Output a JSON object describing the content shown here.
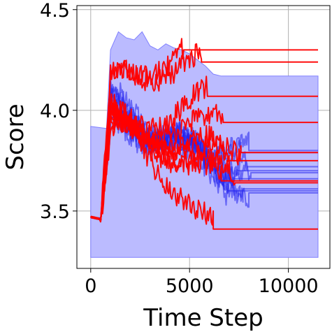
{
  "chart_data": {
    "type": "line",
    "title": "",
    "xlabel": "Time Step",
    "ylabel": "Score",
    "xlim": [
      -700,
      12100
    ],
    "ylim": [
      3.215,
      4.52
    ],
    "xticks": [
      0,
      5000,
      10000
    ],
    "xtick_labels": [
      "0",
      "5000",
      "10000"
    ],
    "yticks": [
      3.5,
      4.0,
      4.5
    ],
    "ytick_labels": [
      "3.5",
      "4.0",
      "4.5"
    ],
    "grid": true,
    "legend": "none",
    "colors": {
      "band": "#bbbbff",
      "band_edge": "#8080ff",
      "blue": "#2323ee",
      "red": "#ff0000"
    },
    "band": {
      "x": [
        0,
        800,
        1000,
        1400,
        1800,
        2200,
        2600,
        3000,
        3400,
        3800,
        4200,
        4600,
        5000,
        5400,
        5800,
        6200,
        6600,
        7000,
        8000,
        9000,
        10000,
        11500
      ],
      "upper": [
        3.92,
        3.91,
        4.3,
        4.39,
        4.36,
        4.35,
        4.39,
        4.32,
        4.3,
        4.33,
        4.31,
        4.3,
        4.28,
        4.25,
        4.22,
        4.18,
        4.17,
        4.17,
        4.17,
        4.17,
        4.17,
        4.17
      ],
      "lower": [
        3.27,
        3.27,
        3.27,
        3.27,
        3.27,
        3.27,
        3.27,
        3.27,
        3.27,
        3.27,
        3.27,
        3.27,
        3.27,
        3.27,
        3.27,
        3.27,
        3.27,
        3.27,
        3.27,
        3.27,
        3.27,
        3.27
      ]
    },
    "start_value": 3.47,
    "series": [
      {
        "color": "blue",
        "final": 3.8,
        "end_x": 8000,
        "seed": 11
      },
      {
        "color": "blue",
        "final": 3.79,
        "end_x": 7600,
        "seed": 12
      },
      {
        "color": "blue",
        "final": 3.72,
        "end_x": 7900,
        "seed": 13
      },
      {
        "color": "blue",
        "final": 3.7,
        "end_x": 7400,
        "seed": 14
      },
      {
        "color": "blue",
        "final": 3.69,
        "end_x": 8100,
        "seed": 15
      },
      {
        "color": "blue",
        "final": 3.66,
        "end_x": 7200,
        "seed": 16
      },
      {
        "color": "blue",
        "final": 3.61,
        "end_x": 7700,
        "seed": 17
      },
      {
        "color": "blue",
        "final": 3.6,
        "end_x": 6900,
        "seed": 18
      },
      {
        "color": "blue",
        "final": 3.59,
        "end_x": 8000,
        "seed": 19
      },
      {
        "color": "red",
        "final": 4.3,
        "end_x": 4700,
        "seed": 21
      },
      {
        "color": "red",
        "final": 4.24,
        "end_x": 5600,
        "seed": 22
      },
      {
        "color": "red",
        "final": 4.07,
        "end_x": 5900,
        "seed": 23
      },
      {
        "color": "red",
        "final": 3.94,
        "end_x": 6700,
        "seed": 24
      },
      {
        "color": "red",
        "final": 3.79,
        "end_x": 7600,
        "seed": 25
      },
      {
        "color": "red",
        "final": 3.75,
        "end_x": 7000,
        "seed": 26
      },
      {
        "color": "red",
        "final": 3.65,
        "end_x": 6600,
        "seed": 27
      },
      {
        "color": "red",
        "final": 3.64,
        "end_x": 7300,
        "seed": 28
      },
      {
        "color": "red",
        "final": 3.41,
        "end_x": 6200,
        "seed": 29
      }
    ],
    "line_end_x": 11500
  }
}
